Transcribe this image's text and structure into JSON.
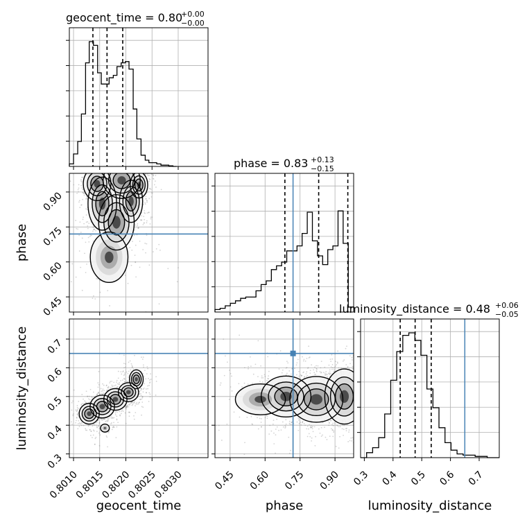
{
  "chart_data": {
    "type": "corner",
    "parameters": [
      "geocent_time",
      "phase",
      "luminosity_distance"
    ],
    "axis_labels": {
      "x": [
        "geocent_time",
        "phase",
        "luminosity_distance"
      ],
      "y": [
        "phase",
        "luminosity_distance"
      ]
    },
    "titles": [
      {
        "param": "geocent_time",
        "text": "geocent_time = 0.80",
        "plus": "+0.00",
        "minus": "−0.00"
      },
      {
        "param": "phase",
        "text": "phase = 0.83",
        "plus": "+0.13",
        "minus": "−0.15"
      },
      {
        "param": "luminosity_distance",
        "text": "luminosity_distance = 0.48",
        "plus": "+0.06",
        "minus": "−0.05"
      }
    ],
    "ranges": {
      "geocent_time": [
        0.80092,
        0.80357
      ],
      "phase": [
        0.385,
        0.98
      ],
      "luminosity_distance": [
        0.287,
        0.77
      ]
    },
    "ticks": {
      "geocent_time": {
        "values": [
          0.801,
          0.8015,
          0.802,
          0.8025,
          0.803
        ],
        "labels": [
          "0.8010",
          "0.8015",
          "0.8020",
          "0.8025",
          "0.8030"
        ]
      },
      "phase": {
        "values": [
          0.45,
          0.6,
          0.75,
          0.9
        ],
        "labels": [
          "0.45",
          "0.60",
          "0.75",
          "0.90"
        ]
      },
      "luminosity_distance": {
        "values": [
          0.3,
          0.4,
          0.5,
          0.6,
          0.7
        ],
        "labels": [
          "0.3",
          "0.4",
          "0.5",
          "0.6",
          "0.7"
        ]
      }
    },
    "injection": {
      "phase": 0.72,
      "luminosity_distance": 0.65
    },
    "quantiles": {
      "geocent_time": [
        0.80137,
        0.80164,
        0.80194
      ],
      "phase": [
        0.685,
        0.83,
        0.955
      ],
      "luminosity_distance": [
        0.425,
        0.477,
        0.533
      ]
    },
    "histograms": {
      "geocent_time": {
        "edges": [
          0.80092,
          0.801,
          0.80108,
          0.80115,
          0.80123,
          0.8013,
          0.80138,
          0.80146,
          0.80153,
          0.80161,
          0.80168,
          0.80176,
          0.80183,
          0.80191,
          0.80199,
          0.80206,
          0.80214,
          0.80221,
          0.80229,
          0.80237,
          0.80244,
          0.80252,
          0.80259,
          0.80267,
          0.80274,
          0.80282,
          0.8029,
          0.80297
        ],
        "counts": [
          0.02,
          0.1,
          0.2,
          0.42,
          0.83,
          1.0,
          0.97,
          0.75,
          0.66,
          0.66,
          0.71,
          0.73,
          0.8,
          0.83,
          0.84,
          0.78,
          0.46,
          0.22,
          0.09,
          0.05,
          0.03,
          0.03,
          0.02,
          0.01,
          0.01,
          0.005,
          0.0
        ]
      },
      "phase": {
        "edges": [
          0.385,
          0.407,
          0.429,
          0.451,
          0.473,
          0.495,
          0.517,
          0.539,
          0.561,
          0.583,
          0.605,
          0.627,
          0.649,
          0.671,
          0.693,
          0.715,
          0.737,
          0.759,
          0.781,
          0.803,
          0.825,
          0.847,
          0.869,
          0.891,
          0.913,
          0.935,
          0.957,
          0.98
        ],
        "counts": [
          0.02,
          0.03,
          0.05,
          0.07,
          0.09,
          0.11,
          0.12,
          0.12,
          0.17,
          0.22,
          0.25,
          0.34,
          0.37,
          0.4,
          0.49,
          0.49,
          0.53,
          0.63,
          0.8,
          0.57,
          0.45,
          0.38,
          0.5,
          0.53,
          0.81,
          0.55,
          0.04
        ]
      },
      "luminosity_distance": {
        "edges": [
          0.287,
          0.308,
          0.329,
          0.35,
          0.371,
          0.392,
          0.413,
          0.434,
          0.455,
          0.476,
          0.497,
          0.518,
          0.539,
          0.56,
          0.581,
          0.602,
          0.623,
          0.644,
          0.665,
          0.686,
          0.707,
          0.728,
          0.749,
          0.77
        ],
        "counts": [
          0.0,
          0.04,
          0.08,
          0.16,
          0.35,
          0.62,
          0.85,
          0.98,
          1.0,
          0.94,
          0.82,
          0.55,
          0.4,
          0.24,
          0.12,
          0.06,
          0.03,
          0.02,
          0.02,
          0.01,
          0.01,
          0.0,
          0.0
        ]
      }
    },
    "density_blobs": {
      "geocent_time_vs_phase": [
        {
          "x": 0.80145,
          "y": 0.935,
          "sx": 0.00011,
          "sy": 0.03,
          "w": 1.0
        },
        {
          "x": 0.80155,
          "y": 0.85,
          "sx": 0.00012,
          "sy": 0.05,
          "w": 0.9
        },
        {
          "x": 0.80192,
          "y": 0.95,
          "sx": 0.00016,
          "sy": 0.035,
          "w": 0.85
        },
        {
          "x": 0.8021,
          "y": 0.86,
          "sx": 0.00011,
          "sy": 0.045,
          "w": 0.7
        },
        {
          "x": 0.80182,
          "y": 0.77,
          "sx": 0.0002,
          "sy": 0.07,
          "w": 0.5
        },
        {
          "x": 0.80168,
          "y": 0.62,
          "sx": 0.0003,
          "sy": 0.09,
          "w": 0.25
        },
        {
          "x": 0.80225,
          "y": 0.93,
          "sx": 9e-05,
          "sy": 0.03,
          "w": 0.6
        }
      ],
      "geocent_time_vs_luminosity_distance": [
        {
          "x": 0.8013,
          "y": 0.44,
          "sx": 8e-05,
          "sy": 0.015,
          "w": 1.0
        },
        {
          "x": 0.80155,
          "y": 0.465,
          "sx": 0.0001,
          "sy": 0.017,
          "w": 0.95
        },
        {
          "x": 0.8018,
          "y": 0.49,
          "sx": 0.0001,
          "sy": 0.017,
          "w": 0.85
        },
        {
          "x": 0.80205,
          "y": 0.515,
          "sx": 0.0001,
          "sy": 0.017,
          "w": 0.65
        },
        {
          "x": 0.8022,
          "y": 0.56,
          "sx": 0.0001,
          "sy": 0.025,
          "w": 0.3
        },
        {
          "x": 0.8016,
          "y": 0.39,
          "sx": 9e-05,
          "sy": 0.015,
          "w": 0.15
        }
      ],
      "phase_vs_luminosity_distance": [
        {
          "x": 0.82,
          "y": 0.49,
          "sx": 0.05,
          "sy": 0.035,
          "w": 0.9
        },
        {
          "x": 0.94,
          "y": 0.5,
          "sx": 0.035,
          "sy": 0.04,
          "w": 1.0
        },
        {
          "x": 0.69,
          "y": 0.5,
          "sx": 0.06,
          "sy": 0.04,
          "w": 0.55
        },
        {
          "x": 0.58,
          "y": 0.49,
          "sx": 0.1,
          "sy": 0.05,
          "w": 0.2
        }
      ]
    },
    "colors": {
      "line": "#000000",
      "injection": "#4682b4",
      "grid": "#b0b0b0",
      "points": "#808080"
    }
  }
}
